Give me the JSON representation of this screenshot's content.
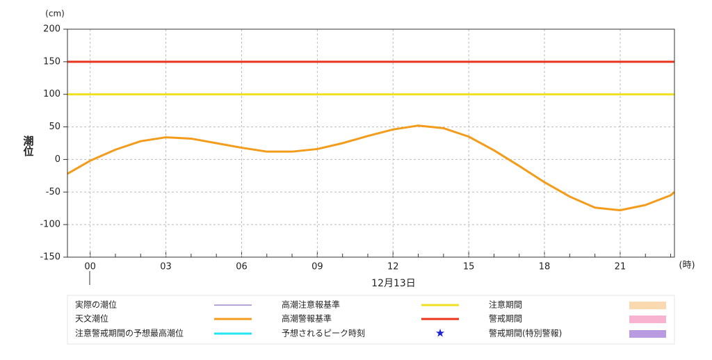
{
  "chart_data": {
    "type": "line",
    "y_unit": "(cm)",
    "y_label": "潮位",
    "x_unit": "(時)",
    "date_label": "12月13日",
    "x": [
      -0.9,
      0,
      1,
      2,
      3,
      4,
      5,
      6,
      7,
      8,
      9,
      10,
      11,
      12,
      13,
      14,
      15,
      16,
      17,
      18,
      19,
      20,
      21,
      22,
      23,
      23.15
    ],
    "series": [
      {
        "name": "実際の潮位",
        "color": "#6a4fb0",
        "values": [
          null,
          null,
          null,
          null,
          null,
          null,
          null,
          null,
          null,
          null,
          null,
          null,
          null,
          null,
          null,
          null,
          null,
          null,
          null,
          null,
          null,
          null,
          null,
          null,
          null,
          null
        ]
      },
      {
        "name": "天文潮位",
        "color": "#f39c1c",
        "values": [
          -22,
          -2,
          15,
          28,
          34,
          32,
          25,
          18,
          12,
          12,
          16,
          25,
          36,
          46,
          52,
          48,
          35,
          14,
          -10,
          -35,
          -57,
          -74,
          -78,
          -70,
          -55,
          -50
        ]
      },
      {
        "name": "注意警戒期間の予想最高潮位",
        "color": "#22e6f0",
        "values": [
          null,
          null,
          null,
          null,
          null,
          null,
          null,
          null,
          null,
          null,
          null,
          null,
          null,
          null,
          null,
          null,
          null,
          null,
          null,
          null,
          null,
          null,
          null,
          null,
          null,
          null
        ]
      }
    ],
    "hlines": [
      {
        "name": "高潮注意報基準",
        "color": "#f0e020",
        "value": 100
      },
      {
        "name": "高潮警報基準",
        "color": "#e8341c",
        "value": 150
      }
    ],
    "markers": [
      {
        "name": "予想されるピーク時刻",
        "color": "#1a22d0",
        "symbol": "★"
      }
    ],
    "periods": [
      {
        "name": "注意期間",
        "color": "#fbd9b0"
      },
      {
        "name": "警戒期間",
        "color": "#f7b3cf"
      },
      {
        "name": "警戒期間(特別警報)",
        "color": "#b89be0"
      }
    ],
    "xlim": [
      -0.9,
      23.15
    ],
    "xticks": [
      {
        "value": 0,
        "label": "00"
      },
      {
        "value": 3,
        "label": "03"
      },
      {
        "value": 6,
        "label": "06"
      },
      {
        "value": 9,
        "label": "09"
      },
      12,
      15,
      18,
      21
    ],
    "ylim": [
      -150,
      200
    ],
    "yticks": [
      -150,
      -100,
      -50,
      0,
      50,
      100,
      150,
      200
    ],
    "grid": true
  }
}
